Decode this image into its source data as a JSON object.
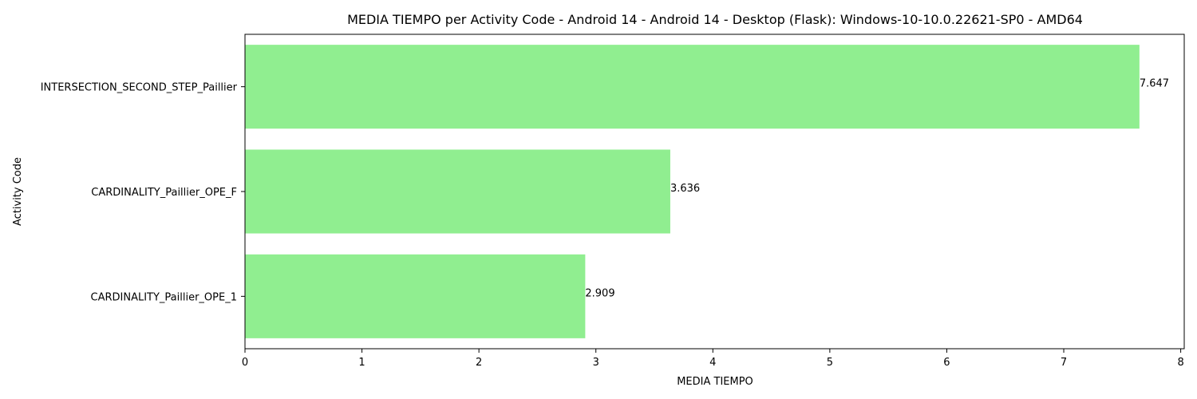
{
  "chart_data": {
    "type": "bar",
    "orientation": "horizontal",
    "title": "MEDIA TIEMPO per Activity Code - Android 14 - Android 14 - Desktop (Flask): Windows-10-10.0.22621-SP0 - AMD64",
    "xlabel": "MEDIA TIEMPO",
    "ylabel": "Activity Code",
    "categories": [
      "INTERSECTION_SECOND_STEP_Paillier",
      "CARDINALITY_Paillier_OPE_F",
      "CARDINALITY_Paillier_OPE_1"
    ],
    "values": [
      7.647,
      3.636,
      2.909
    ],
    "value_labels": [
      "7.647",
      "3.636",
      "2.909"
    ],
    "xlim": [
      0,
      8.03
    ],
    "xticks": [
      0,
      1,
      2,
      3,
      4,
      5,
      6,
      7,
      8
    ],
    "xtick_labels": [
      "0",
      "1",
      "2",
      "3",
      "4",
      "5",
      "6",
      "7",
      "8"
    ],
    "grid": false,
    "bar_color": "#90ee90"
  }
}
